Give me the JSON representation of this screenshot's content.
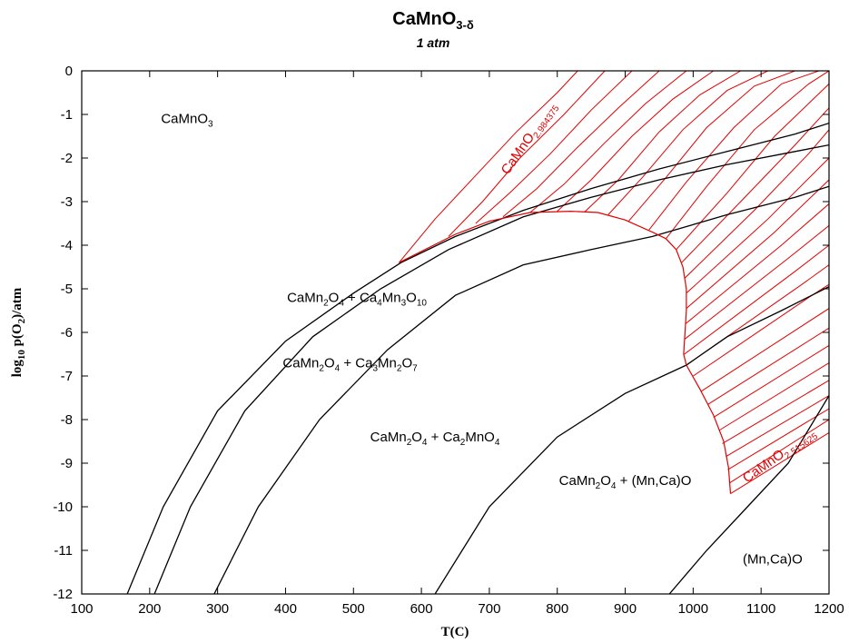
{
  "chart_data": {
    "type": "line",
    "title": "CaMnO",
    "title_sub": "3-δ",
    "subtitle": "1 atm",
    "xlabel": "T(C)",
    "ylabel": "log",
    "ylabel_sub": "10",
    "ylabel_rest": " p(O",
    "ylabel_sub2": "2",
    "ylabel_end": ")/atm",
    "xlim": [
      100,
      1200
    ],
    "ylim": [
      -12,
      0
    ],
    "xticks": [
      100,
      200,
      300,
      400,
      500,
      600,
      700,
      800,
      900,
      1000,
      1100,
      1200
    ],
    "yticks": [
      0,
      -1,
      -2,
      -3,
      -4,
      -5,
      -6,
      -7,
      -8,
      -9,
      -10,
      -11,
      -12
    ],
    "grid": false,
    "colors": {
      "phase_boundary": "#000000",
      "isostoichiometric": "#e00000",
      "boundary_trace": "#e00000"
    },
    "phase_boundaries": [
      {
        "points": [
          [
            167,
            -12
          ],
          [
            220,
            -10
          ],
          [
            300,
            -7.8
          ],
          [
            400,
            -6.2
          ],
          [
            500,
            -5.1
          ],
          [
            570,
            -4.4
          ],
          [
            650,
            -3.8
          ],
          [
            750,
            -3.2
          ],
          [
            850,
            -2.7
          ],
          [
            950,
            -2.25
          ],
          [
            1050,
            -1.85
          ],
          [
            1150,
            -1.45
          ],
          [
            1200,
            -1.2
          ]
        ]
      },
      {
        "points": [
          [
            207,
            -12
          ],
          [
            260,
            -10
          ],
          [
            340,
            -7.8
          ],
          [
            440,
            -6.1
          ],
          [
            540,
            -5.0
          ],
          [
            640,
            -4.1
          ],
          [
            750,
            -3.35
          ],
          [
            850,
            -2.9
          ],
          [
            950,
            -2.5
          ],
          [
            1050,
            -2.15
          ],
          [
            1150,
            -1.85
          ],
          [
            1200,
            -1.7
          ]
        ]
      },
      {
        "points": [
          [
            295,
            -12
          ],
          [
            360,
            -10
          ],
          [
            450,
            -8
          ],
          [
            550,
            -6.4
          ],
          [
            650,
            -5.15
          ],
          [
            750,
            -4.45
          ],
          [
            850,
            -4.1
          ],
          [
            940,
            -3.8
          ],
          [
            1050,
            -3.3
          ],
          [
            1150,
            -2.9
          ],
          [
            1200,
            -2.65
          ]
        ]
      },
      {
        "points": [
          [
            620,
            -12
          ],
          [
            700,
            -10
          ],
          [
            800,
            -8.4
          ],
          [
            900,
            -7.4
          ],
          [
            990,
            -6.75
          ],
          [
            1050,
            -6.1
          ],
          [
            1130,
            -5.5
          ],
          [
            1200,
            -4.95
          ]
        ]
      },
      {
        "points": [
          [
            965,
            -12
          ],
          [
            1020,
            -11
          ],
          [
            1080,
            -10
          ],
          [
            1140,
            -9
          ],
          [
            1200,
            -7.45
          ]
        ]
      }
    ],
    "boundary_trace": [
      [
        567,
        -4.4
      ],
      [
        650,
        -3.75
      ],
      [
        700,
        -3.45
      ],
      [
        760,
        -3.25
      ],
      [
        820,
        -3.22
      ],
      [
        860,
        -3.25
      ],
      [
        900,
        -3.42
      ],
      [
        940,
        -3.7
      ],
      [
        960,
        -3.85
      ],
      [
        975,
        -4.1
      ],
      [
        985,
        -4.5
      ],
      [
        990,
        -5.0
      ],
      [
        990,
        -5.5
      ],
      [
        988,
        -6.0
      ],
      [
        986,
        -6.5
      ],
      [
        990,
        -6.75
      ],
      [
        1010,
        -7.3
      ],
      [
        1030,
        -7.9
      ],
      [
        1045,
        -8.5
      ],
      [
        1052,
        -9.1
      ],
      [
        1055,
        -9.7
      ]
    ],
    "isostoichiometric_lines": [
      [
        [
          567,
          -4.4
        ],
        [
          620,
          -3.4
        ],
        [
          680,
          -2.4
        ],
        [
          740,
          -1.4
        ],
        [
          800,
          -0.5
        ],
        [
          830,
          0
        ]
      ],
      [
        [
          640,
          -3.8
        ],
        [
          690,
          -3.0
        ],
        [
          745,
          -2.0
        ],
        [
          810,
          -1.0
        ],
        [
          870,
          0
        ]
      ],
      [
        [
          680,
          -3.5
        ],
        [
          730,
          -2.8
        ],
        [
          790,
          -1.9
        ],
        [
          850,
          -0.9
        ],
        [
          910,
          0
        ]
      ],
      [
        [
          720,
          -3.35
        ],
        [
          770,
          -2.7
        ],
        [
          830,
          -1.75
        ],
        [
          890,
          -0.85
        ],
        [
          950,
          0
        ]
      ],
      [
        [
          760,
          -3.25
        ],
        [
          810,
          -2.6
        ],
        [
          870,
          -1.65
        ],
        [
          930,
          -0.75
        ],
        [
          990,
          0
        ]
      ],
      [
        [
          800,
          -3.22
        ],
        [
          850,
          -2.5
        ],
        [
          910,
          -1.5
        ],
        [
          970,
          -0.65
        ],
        [
          1030,
          0
        ]
      ],
      [
        [
          840,
          -3.24
        ],
        [
          890,
          -2.5
        ],
        [
          950,
          -1.4
        ],
        [
          1010,
          -0.55
        ],
        [
          1070,
          0
        ]
      ],
      [
        [
          875,
          -3.3
        ],
        [
          925,
          -2.45
        ],
        [
          985,
          -1.35
        ],
        [
          1050,
          -0.45
        ],
        [
          1110,
          0
        ]
      ],
      [
        [
          905,
          -3.45
        ],
        [
          960,
          -2.45
        ],
        [
          1020,
          -1.3
        ],
        [
          1090,
          -0.35
        ],
        [
          1150,
          0
        ]
      ],
      [
        [
          935,
          -3.65
        ],
        [
          990,
          -2.55
        ],
        [
          1060,
          -1.3
        ],
        [
          1130,
          -0.3
        ],
        [
          1185,
          0
        ]
      ],
      [
        [
          960,
          -3.85
        ],
        [
          1020,
          -2.65
        ],
        [
          1090,
          -1.35
        ],
        [
          1170,
          -0.3
        ],
        [
          1200,
          0
        ]
      ],
      [
        [
          975,
          -4.1
        ],
        [
          1050,
          -2.8
        ],
        [
          1120,
          -1.5
        ],
        [
          1200,
          -0.3
        ]
      ],
      [
        [
          983,
          -4.4
        ],
        [
          1070,
          -3.0
        ],
        [
          1150,
          -1.7
        ],
        [
          1200,
          -0.85
        ]
      ],
      [
        [
          988,
          -4.75
        ],
        [
          1090,
          -3.2
        ],
        [
          1170,
          -1.9
        ],
        [
          1200,
          -1.35
        ]
      ],
      [
        [
          990,
          -5.1
        ],
        [
          1110,
          -3.4
        ],
        [
          1200,
          -2.0
        ]
      ],
      [
        [
          990,
          -5.45
        ],
        [
          1120,
          -3.7
        ],
        [
          1200,
          -2.5
        ]
      ],
      [
        [
          989,
          -5.8
        ],
        [
          1130,
          -4.0
        ],
        [
          1200,
          -3.05
        ]
      ],
      [
        [
          988,
          -6.15
        ],
        [
          1140,
          -4.3
        ],
        [
          1200,
          -3.55
        ]
      ],
      [
        [
          987,
          -6.5
        ],
        [
          1150,
          -4.6
        ],
        [
          1200,
          -4.0
        ]
      ],
      [
        [
          990,
          -6.75
        ],
        [
          1160,
          -4.9
        ],
        [
          1200,
          -4.45
        ]
      ],
      [
        [
          1000,
          -7.0
        ],
        [
          1170,
          -5.2
        ],
        [
          1200,
          -4.9
        ]
      ],
      [
        [
          1012,
          -7.35
        ],
        [
          1200,
          -5.45
        ]
      ],
      [
        [
          1022,
          -7.65
        ],
        [
          1200,
          -5.9
        ]
      ],
      [
        [
          1030,
          -7.95
        ],
        [
          1200,
          -6.3
        ]
      ],
      [
        [
          1038,
          -8.25
        ],
        [
          1200,
          -6.7
        ]
      ],
      [
        [
          1043,
          -8.55
        ],
        [
          1200,
          -7.1
        ]
      ],
      [
        [
          1048,
          -8.85
        ],
        [
          1200,
          -7.45
        ]
      ],
      [
        [
          1051,
          -9.15
        ],
        [
          1200,
          -7.75
        ]
      ],
      [
        [
          1054,
          -9.45
        ],
        [
          1200,
          -8.0
        ]
      ],
      [
        [
          1055,
          -9.7
        ],
        [
          1200,
          -8.3
        ]
      ]
    ],
    "regions": [
      {
        "parts": [
          [
            "CaMnO",
            ""
          ],
          [
            "3",
            "sub"
          ]
        ],
        "x": 255,
        "y": -1.2
      },
      {
        "parts": [
          [
            "CaMn",
            ""
          ],
          [
            "2",
            "sub"
          ],
          [
            "O",
            ""
          ],
          [
            "4",
            "sub"
          ],
          [
            " + Ca",
            ""
          ],
          [
            "4",
            "sub"
          ],
          [
            "Mn",
            ""
          ],
          [
            "3",
            "sub"
          ],
          [
            "O",
            ""
          ],
          [
            "10",
            "sub"
          ]
        ],
        "x": 505,
        "y": -5.3
      },
      {
        "parts": [
          [
            "CaMn",
            ""
          ],
          [
            "2",
            "sub"
          ],
          [
            "O",
            ""
          ],
          [
            "4",
            "sub"
          ],
          [
            " + Ca",
            ""
          ],
          [
            "3",
            "sub"
          ],
          [
            "Mn",
            ""
          ],
          [
            "2",
            "sub"
          ],
          [
            "O",
            ""
          ],
          [
            "7",
            "sub"
          ]
        ],
        "x": 495,
        "y": -6.8
      },
      {
        "parts": [
          [
            "CaMn",
            ""
          ],
          [
            "2",
            "sub"
          ],
          [
            "O",
            ""
          ],
          [
            "4",
            "sub"
          ],
          [
            " + Ca",
            ""
          ],
          [
            "2",
            "sub"
          ],
          [
            "MnO",
            ""
          ],
          [
            "4",
            "sub"
          ]
        ],
        "x": 620,
        "y": -8.5
      },
      {
        "parts": [
          [
            "CaMn",
            ""
          ],
          [
            "2",
            "sub"
          ],
          [
            "O",
            ""
          ],
          [
            "4",
            "sub"
          ],
          [
            " + (Mn,Ca)O",
            ""
          ]
        ],
        "x": 900,
        "y": -9.5
      },
      {
        "parts": [
          [
            "(Mn,Ca)O",
            ""
          ]
        ],
        "x": 1117,
        "y": -11.3
      }
    ],
    "isostoichiometric_labels": [
      {
        "parts": [
          [
            "CaMnO",
            ""
          ],
          [
            "2.984375",
            "sub"
          ]
        ],
        "x": 763,
        "y": -1.6,
        "rotate": -55
      },
      {
        "parts": [
          [
            "CaMnO",
            ""
          ],
          [
            "2.515625",
            "sub"
          ]
        ],
        "x": 1130,
        "y": -8.9,
        "rotate": -35
      }
    ]
  }
}
